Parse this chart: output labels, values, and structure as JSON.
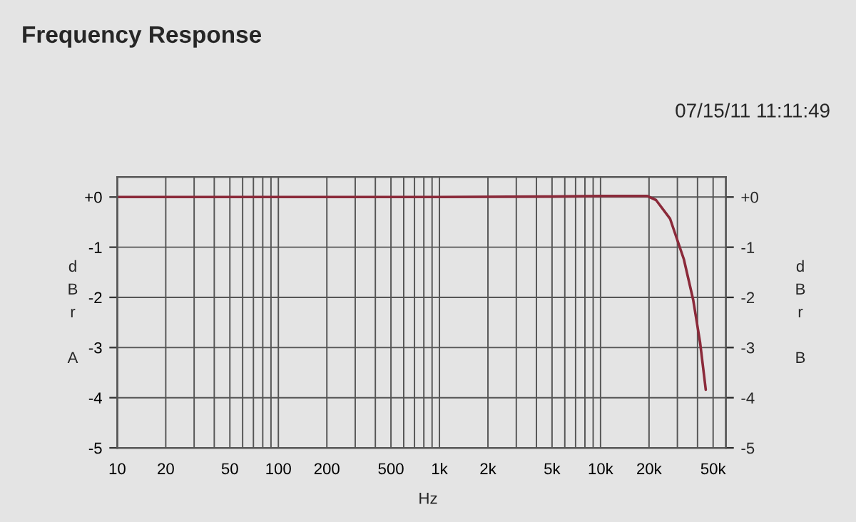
{
  "chart_data": {
    "type": "line",
    "title": "Frequency Response",
    "xlabel": "Hz",
    "ylabel": "d\nB\nr\n\nA",
    "y2label": "d\nB\nr\n\nB",
    "annotations": [
      "07/15/11 11:11:49"
    ],
    "log": "x",
    "grid": true,
    "marker": "none",
    "line_style": "solid",
    "xlim": [
      10,
      60000
    ],
    "ylim": [
      -5,
      0.4
    ],
    "y2lim": [
      -5,
      0.4
    ],
    "xticks": [
      10,
      20,
      {
        "value": 30,
        "label": null
      },
      {
        "value": 40,
        "label": null
      },
      50,
      {
        "value": 60,
        "label": null
      },
      {
        "value": 70,
        "label": null
      },
      {
        "value": 80,
        "label": null
      },
      {
        "value": 90,
        "label": null
      },
      100,
      200,
      {
        "value": 300,
        "label": null
      },
      {
        "value": 400,
        "label": null
      },
      500,
      {
        "value": 600,
        "label": null
      },
      {
        "value": 700,
        "label": null
      },
      {
        "value": 800,
        "label": null
      },
      {
        "value": 900,
        "label": null
      },
      {
        "value": 1000,
        "label": "1k"
      },
      {
        "value": 2000,
        "label": "2k"
      },
      {
        "value": 3000,
        "label": null
      },
      {
        "value": 4000,
        "label": null
      },
      {
        "value": 5000,
        "label": "5k"
      },
      {
        "value": 6000,
        "label": null
      },
      {
        "value": 7000,
        "label": null
      },
      {
        "value": 8000,
        "label": null
      },
      {
        "value": 9000,
        "label": null
      },
      {
        "value": 10000,
        "label": "10k"
      },
      {
        "value": 20000,
        "label": "20k"
      },
      {
        "value": 30000,
        "label": null
      },
      {
        "value": 40000,
        "label": null
      },
      {
        "value": 50000,
        "label": "50k"
      }
    ],
    "yticks": [
      {
        "value": 0,
        "label": "+0"
      },
      -1,
      -2,
      -3,
      -4,
      -5
    ],
    "y2ticks": [
      {
        "value": 0,
        "label": "+0"
      },
      -1,
      -2,
      -3,
      -4,
      -5
    ],
    "series": [
      {
        "color": "#8b2a3a",
        "x": [
          10,
          100,
          1000,
          5000,
          10000,
          15000,
          19500,
          22100,
          27000,
          32900,
          37600,
          41500,
          45000
        ],
        "values": [
          0,
          0,
          0,
          0.01,
          0.02,
          0.02,
          0.02,
          -0.06,
          -0.43,
          -1.24,
          -2.05,
          -2.9,
          -3.84
        ]
      }
    ]
  }
}
